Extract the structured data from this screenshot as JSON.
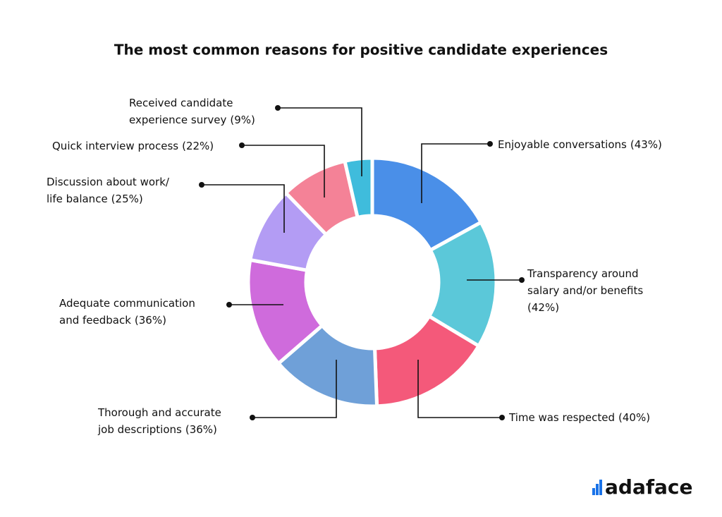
{
  "chart_data": {
    "type": "donut",
    "title": "The most common reasons for positive candidate experiences",
    "categories": [
      [
        "Enjoyable conversations"
      ],
      [
        "Transparency around",
        "salary and/or benefits"
      ],
      [
        "Time was respected"
      ],
      [
        "Thorough and accurate",
        "job descriptions"
      ],
      [
        "Adequate communication",
        "and feedback"
      ],
      [
        "Discussion about work/",
        "life balance"
      ],
      [
        "Quick interview process"
      ],
      [
        "Received candidate",
        "experience survey"
      ]
    ],
    "values": [
      43,
      42,
      40,
      36,
      36,
      25,
      22,
      9
    ],
    "value_labels": [
      "(43%)",
      "(42%)",
      "(40%)",
      "(36%)",
      "(36%)",
      "(25%)",
      "(22%)",
      "(9%)"
    ],
    "colors": [
      "#4a8fe8",
      "#5bc8d9",
      "#f4597a",
      "#6fa0d8",
      "#cf6bdc",
      "#b39cf4",
      "#f48297",
      "#3fbcdc"
    ]
  },
  "logo": "adaface"
}
